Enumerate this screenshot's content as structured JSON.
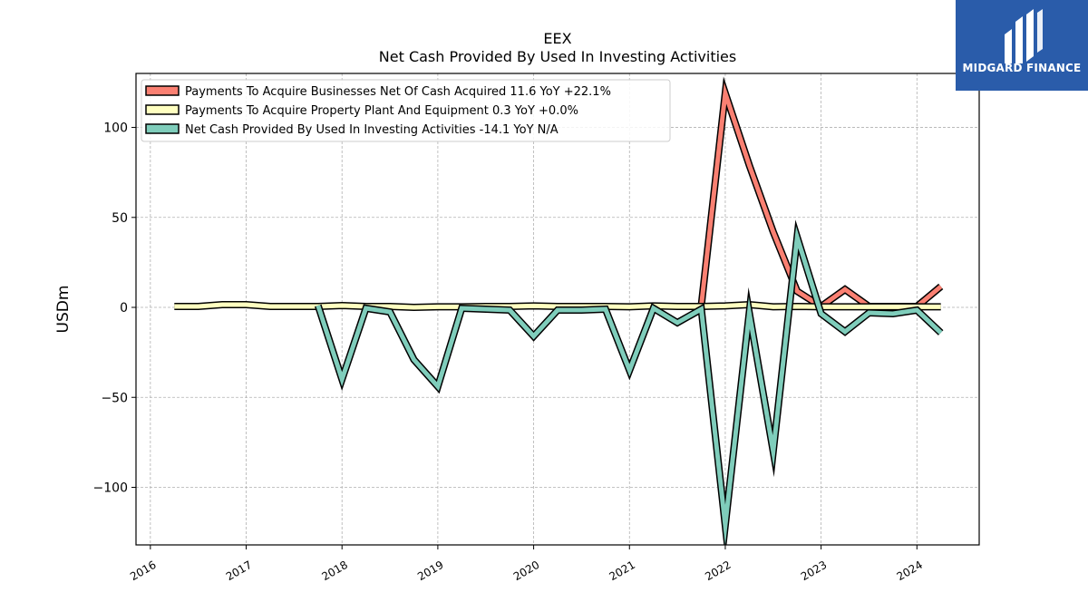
{
  "chart_data": {
    "type": "line",
    "title": "EEX",
    "subtitle": "Net Cash Provided By Used In Investing Activities",
    "ylabel": "USDm",
    "xlabel": "",
    "ylim": [
      -132,
      130
    ],
    "xlim": [
      2015.85,
      2024.65
    ],
    "yticks": [
      100,
      50,
      0,
      -50,
      -100
    ],
    "ytick_labels": [
      "100",
      "50",
      "0",
      "−50",
      "−100"
    ],
    "xticks": [
      2016,
      2017,
      2018,
      2019,
      2020,
      2021,
      2022,
      2023,
      2024
    ],
    "xtick_labels": [
      "2016",
      "2017",
      "2018",
      "2019",
      "2020",
      "2021",
      "2022",
      "2023",
      "2024"
    ],
    "grid": true,
    "legend_position": "top-left",
    "series": [
      {
        "name": "Payments To Acquire Businesses Net Of Cash Acquired  11.6 YoY +22.1%",
        "color": "#fa8072",
        "x": [
          2021.75,
          2022.0,
          2022.25,
          2022.5,
          2022.75,
          2023.0,
          2023.25,
          2023.5,
          2023.75,
          2024.0,
          2024.25
        ],
        "y": [
          1.0,
          119.0,
          79.0,
          42.0,
          9.0,
          0.5,
          10.0,
          0.5,
          0.5,
          0.5,
          11.6
        ]
      },
      {
        "name": "Payments To Acquire Property Plant And Equipment  0.3 YoY +0.0%",
        "color": "#ffffc0",
        "x": [
          2016.25,
          2016.5,
          2016.75,
          2017.0,
          2017.25,
          2017.5,
          2017.75,
          2018.0,
          2018.25,
          2018.5,
          2018.75,
          2019.0,
          2019.25,
          2019.5,
          2019.75,
          2020.0,
          2020.25,
          2020.5,
          2020.75,
          2021.0,
          2021.25,
          2021.5,
          2021.75,
          2022.0,
          2022.25,
          2022.5,
          2022.75,
          2023.0,
          2023.25,
          2023.5,
          2023.75,
          2024.0,
          2024.25
        ],
        "y": [
          0.5,
          0.5,
          1.5,
          1.5,
          0.5,
          0.5,
          0.5,
          1.0,
          0.5,
          0.5,
          0.0,
          0.3,
          0.3,
          0.5,
          0.5,
          0.8,
          0.5,
          0.5,
          0.5,
          0.3,
          0.8,
          0.5,
          0.5,
          0.8,
          1.5,
          0.3,
          0.5,
          0.3,
          0.3,
          0.3,
          0.3,
          0.3,
          0.3
        ]
      },
      {
        "name": "Net Cash Provided By Used In Investing Activities  -14.1 YoY N/A",
        "color": "#7fcdbb",
        "x": [
          2017.75,
          2018.0,
          2018.25,
          2018.5,
          2018.75,
          2019.0,
          2019.25,
          2019.5,
          2019.75,
          2020.0,
          2020.25,
          2020.5,
          2020.75,
          2021.0,
          2021.25,
          2021.5,
          2021.75,
          2022.0,
          2022.25,
          2022.5,
          2022.75,
          2023.0,
          2023.25,
          2023.5,
          2023.75,
          2024.0,
          2024.25
        ],
        "y": [
          1.0,
          -40.0,
          -0.5,
          -2.5,
          -29.0,
          -44.0,
          -0.5,
          -1.0,
          -1.5,
          -16.0,
          -1.5,
          -1.5,
          -1.0,
          -35.0,
          -0.5,
          -8.5,
          -1.0,
          -121.0,
          -3.0,
          -80.0,
          39.0,
          -3.5,
          -13.5,
          -3.0,
          -3.5,
          -1.5,
          -14.1
        ]
      }
    ]
  },
  "logo": {
    "text": "MIDGARD FINANCE",
    "background": "#2a5caa"
  }
}
